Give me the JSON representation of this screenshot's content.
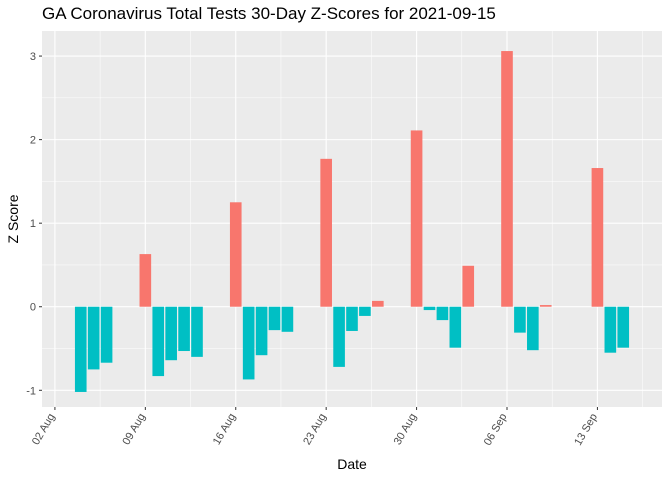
{
  "chart_data": {
    "type": "bar",
    "title": "GA Coronavirus Total Tests 30-Day Z-Scores for 2021-09-15",
    "xlabel": "Date",
    "ylabel": "Z Score",
    "x_start": "2021-08-02",
    "xlim": [
      "2021-08-01",
      "2021-09-18"
    ],
    "ylim": [
      -1.2,
      3.3
    ],
    "y_ticks": [
      -1,
      0,
      1,
      2,
      3
    ],
    "x_tick_labels": [
      "02 Aug",
      "09 Aug",
      "16 Aug",
      "23 Aug",
      "30 Aug",
      "06 Sep",
      "13 Sep"
    ],
    "grid": true,
    "legend": "none",
    "colors": {
      "positive": "#F8766D",
      "negative": "#00BFC4",
      "panel": "#EBEBEB",
      "grid": "#FFFFFF"
    },
    "series": [
      {
        "dates": [
          "2021-08-04",
          "2021-08-05",
          "2021-08-06",
          "2021-08-09",
          "2021-08-10",
          "2021-08-11",
          "2021-08-12",
          "2021-08-13",
          "2021-08-16",
          "2021-08-17",
          "2021-08-18",
          "2021-08-19",
          "2021-08-20",
          "2021-08-23",
          "2021-08-24",
          "2021-08-25",
          "2021-08-26",
          "2021-08-27",
          "2021-08-30",
          "2021-08-31",
          "2021-09-01",
          "2021-09-02",
          "2021-09-03",
          "2021-09-06",
          "2021-09-07",
          "2021-09-08",
          "2021-09-09",
          "2021-09-13",
          "2021-09-14",
          "2021-09-15"
        ],
        "values": [
          -1.02,
          -0.75,
          -0.67,
          0.63,
          -0.83,
          -0.64,
          -0.53,
          -0.6,
          1.25,
          -0.87,
          -0.58,
          -0.28,
          -0.3,
          1.77,
          -0.72,
          -0.29,
          -0.11,
          0.07,
          2.11,
          -0.04,
          -0.16,
          -0.49,
          0.49,
          3.06,
          -0.31,
          -0.52,
          0.02,
          1.66,
          -0.55,
          -0.49
        ]
      }
    ]
  }
}
